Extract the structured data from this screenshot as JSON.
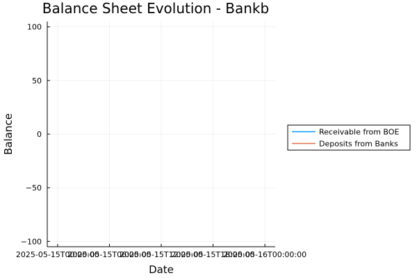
{
  "chart_data": {
    "type": "line",
    "title": "Balance Sheet Evolution - Bankb",
    "xlabel": "Date",
    "ylabel": "Balance",
    "x_ticks": [
      "2025-05-15T00:00:00",
      "2025-05-15T06:00:00",
      "2025-05-15T12:00:00",
      "2025-05-15T18:00:00",
      "2025-05-16T00:00:00"
    ],
    "xlim": [
      "2025-05-14T22:48:00",
      "2025-05-16T01:12:00"
    ],
    "y_ticks": [
      -100,
      -50,
      0,
      50,
      100
    ],
    "ylim": [
      -105,
      105
    ],
    "grid": true,
    "legend_position": "outer-right",
    "series": [
      {
        "name": "Receivable from BOE",
        "color": "#009AFA",
        "x": [],
        "y": []
      },
      {
        "name": "Deposits from Banks",
        "color": "#E36F47",
        "x": [],
        "y": []
      }
    ]
  }
}
